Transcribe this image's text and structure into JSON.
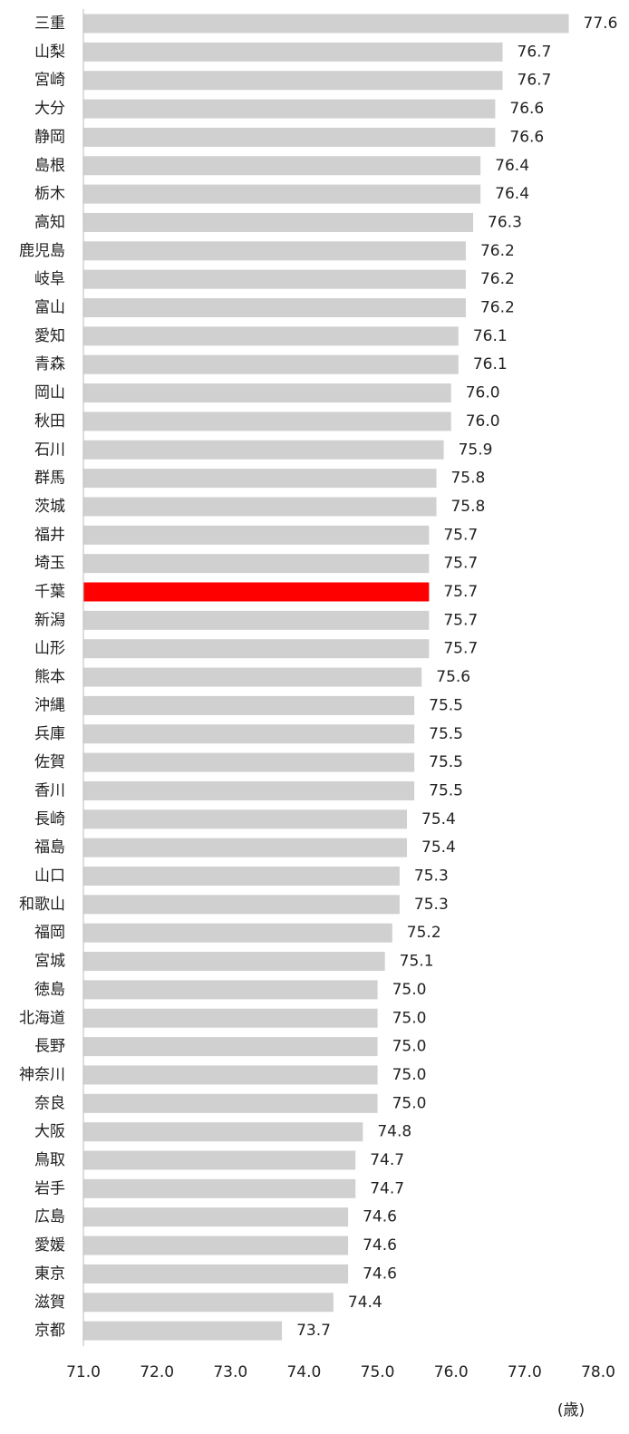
{
  "chart_data": {
    "type": "bar",
    "orientation": "horizontal",
    "categories": [
      "三重",
      "山梨",
      "宮崎",
      "大分",
      "静岡",
      "島根",
      "栃木",
      "高知",
      "鹿児島",
      "岐阜",
      "富山",
      "愛知",
      "青森",
      "岡山",
      "秋田",
      "石川",
      "群馬",
      "茨城",
      "福井",
      "埼玉",
      "千葉",
      "新潟",
      "山形",
      "熊本",
      "沖縄",
      "兵庫",
      "佐賀",
      "香川",
      "長崎",
      "福島",
      "山口",
      "和歌山",
      "福岡",
      "宮城",
      "徳島",
      "北海道",
      "長野",
      "神奈川",
      "奈良",
      "大阪",
      "鳥取",
      "岩手",
      "広島",
      "愛媛",
      "東京",
      "滋賀",
      "京都"
    ],
    "values": [
      77.6,
      76.7,
      76.7,
      76.6,
      76.6,
      76.4,
      76.4,
      76.3,
      76.2,
      76.2,
      76.2,
      76.1,
      76.1,
      76.0,
      76.0,
      75.9,
      75.8,
      75.8,
      75.7,
      75.7,
      75.7,
      75.7,
      75.7,
      75.6,
      75.5,
      75.5,
      75.5,
      75.5,
      75.4,
      75.4,
      75.3,
      75.3,
      75.2,
      75.1,
      75.0,
      75.0,
      75.0,
      75.0,
      75.0,
      74.8,
      74.7,
      74.7,
      74.6,
      74.6,
      74.6,
      74.4,
      73.7
    ],
    "value_labels": [
      "77.6",
      "76.7",
      "76.7",
      "76.6",
      "76.6",
      "76.4",
      "76.4",
      "76.3",
      "76.2",
      "76.2",
      "76.2",
      "76.1",
      "76.1",
      "76.0",
      "76.0",
      "75.9",
      "75.8",
      "75.8",
      "75.7",
      "75.7",
      "75.7",
      "75.7",
      "75.7",
      "75.6",
      "75.5",
      "75.5",
      "75.5",
      "75.5",
      "75.4",
      "75.4",
      "75.3",
      "75.3",
      "75.2",
      "75.1",
      "75.0",
      "75.0",
      "75.0",
      "75.0",
      "75.0",
      "74.8",
      "74.7",
      "74.7",
      "74.6",
      "74.6",
      "74.6",
      "74.4",
      "73.7"
    ],
    "colors": [
      "#d0d0d0",
      "#d0d0d0",
      "#d0d0d0",
      "#d0d0d0",
      "#d0d0d0",
      "#d0d0d0",
      "#d0d0d0",
      "#d0d0d0",
      "#d0d0d0",
      "#d0d0d0",
      "#d0d0d0",
      "#d0d0d0",
      "#d0d0d0",
      "#d0d0d0",
      "#d0d0d0",
      "#d0d0d0",
      "#d0d0d0",
      "#d0d0d0",
      "#d0d0d0",
      "#d0d0d0",
      "#ff0000",
      "#d0d0d0",
      "#d0d0d0",
      "#d0d0d0",
      "#d0d0d0",
      "#d0d0d0",
      "#d0d0d0",
      "#d0d0d0",
      "#d0d0d0",
      "#d0d0d0",
      "#d0d0d0",
      "#d0d0d0",
      "#d0d0d0",
      "#d0d0d0",
      "#d0d0d0",
      "#d0d0d0",
      "#d0d0d0",
      "#d0d0d0",
      "#d0d0d0",
      "#d0d0d0",
      "#d0d0d0",
      "#d0d0d0",
      "#d0d0d0",
      "#d0d0d0",
      "#d0d0d0",
      "#d0d0d0",
      "#d0d0d0"
    ],
    "xlim": [
      71,
      78
    ],
    "xticks": [
      {
        "value": 71,
        "label": "71.0"
      },
      {
        "value": 72,
        "label": "72.0"
      },
      {
        "value": 73,
        "label": "73.0"
      },
      {
        "value": 74,
        "label": "74.0"
      },
      {
        "value": 75,
        "label": "75.0"
      },
      {
        "value": 76,
        "label": "76.0"
      },
      {
        "value": 77,
        "label": "77.0"
      },
      {
        "value": 78,
        "label": "78.0"
      }
    ],
    "x_label": "(歳)"
  }
}
